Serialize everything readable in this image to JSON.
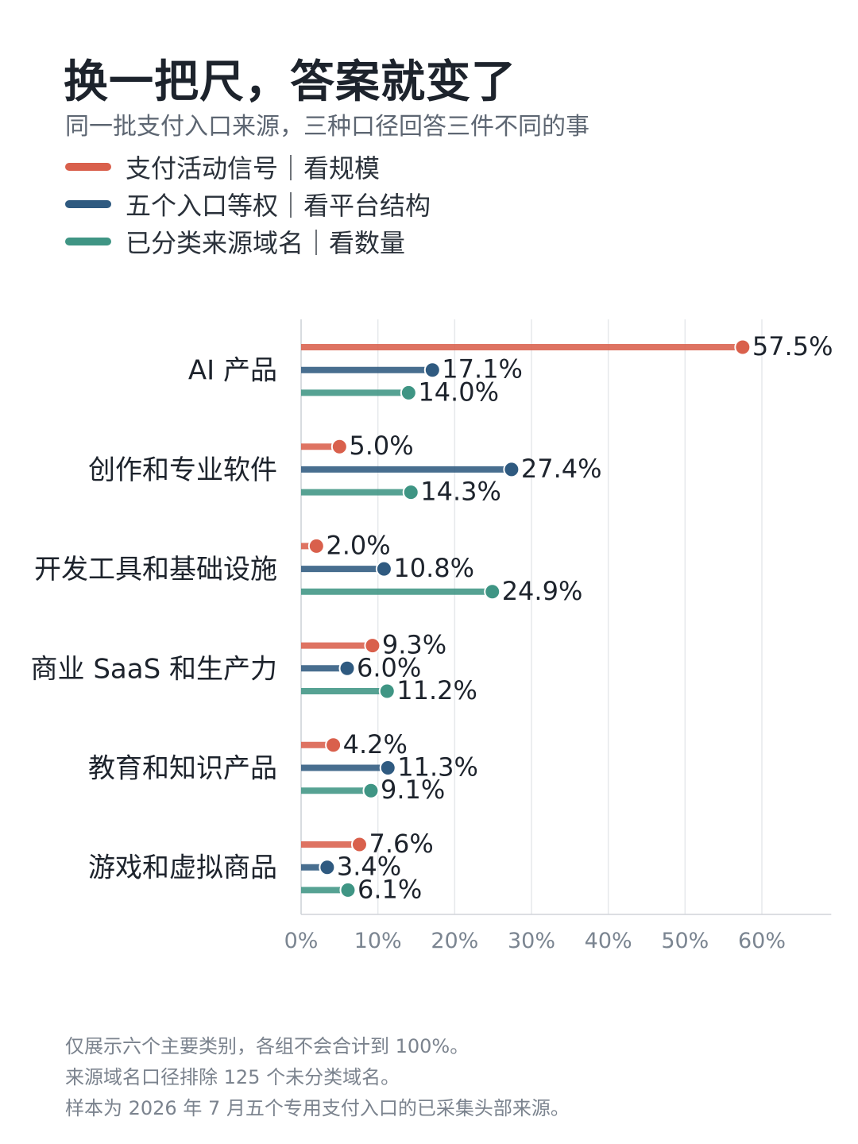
{
  "title": "换一把尺，答案就变了",
  "subtitle": "同一批支付入口来源，三种口径回答三件不同的事",
  "notes": [
    "仅展示六个主要类别，各组不会合计到 100%。",
    "来源域名口径排除 125 个未分类域名。",
    "样本为 2026 年 7 月五个专用支付入口的已采集头部来源。"
  ],
  "chart_data": {
    "type": "bar",
    "orientation": "horizontal",
    "style": "lollipop",
    "categories": [
      "AI 产品",
      "创作和专业软件",
      "开发工具和基础设施",
      "商业 SaaS 和生产力",
      "教育和知识产品",
      "游戏和虚拟商品"
    ],
    "series": [
      {
        "name": "支付活动信号｜看规模",
        "color": "#d9604c",
        "values": [
          57.5,
          5.0,
          2.0,
          9.3,
          4.2,
          7.6
        ]
      },
      {
        "name": "五个入口等权｜看平台结构",
        "color": "#2f5a80",
        "values": [
          17.1,
          27.4,
          10.8,
          6.0,
          11.3,
          3.4
        ]
      },
      {
        "name": "已分类来源域名｜看数量",
        "color": "#3f9584",
        "values": [
          14.0,
          14.3,
          24.9,
          11.2,
          9.1,
          6.1
        ]
      }
    ],
    "value_suffix": "%",
    "xlim": [
      0,
      68
    ],
    "xticks": [
      0,
      10,
      20,
      30,
      40,
      50,
      60
    ],
    "xtick_labels": [
      "0%",
      "10%",
      "20%",
      "30%",
      "40%",
      "50%",
      "60%"
    ],
    "grid": "vertical",
    "legend_position": "top-left"
  }
}
